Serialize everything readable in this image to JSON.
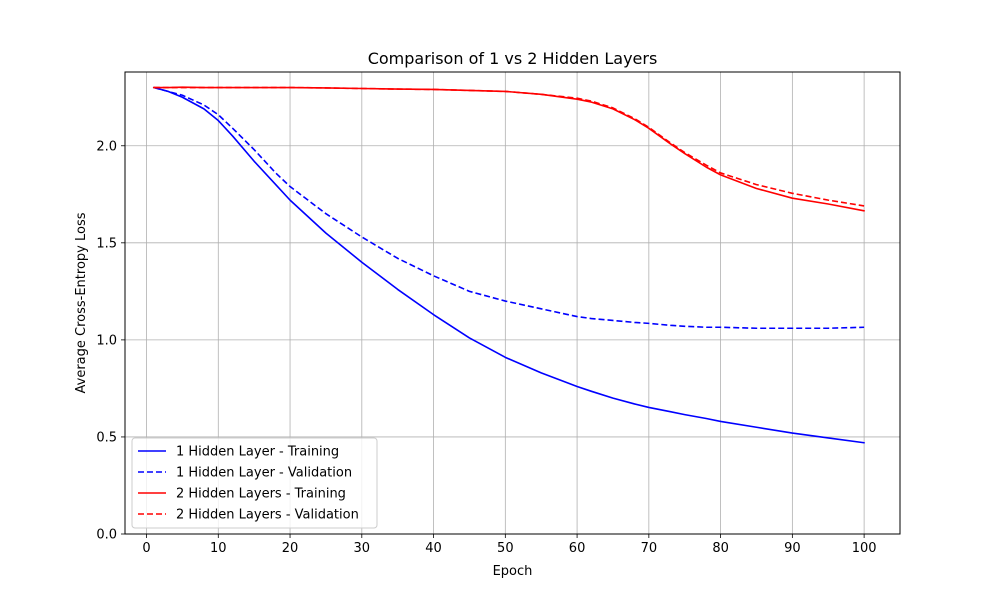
{
  "chart_data": {
    "type": "line",
    "title": "Comparison of 1 vs 2 Hidden Layers",
    "xlabel": "Epoch",
    "ylabel": "Average Cross-Entropy Loss",
    "xlim": [
      -3,
      105
    ],
    "ylim": [
      0.0,
      2.38
    ],
    "xticks": [
      0,
      10,
      20,
      30,
      40,
      50,
      60,
      70,
      80,
      90,
      100
    ],
    "yticks": [
      0.0,
      0.5,
      1.0,
      1.5,
      2.0
    ],
    "ytick_labels": [
      "0.0",
      "0.5",
      "1.0",
      "1.5",
      "2.0"
    ],
    "grid": true,
    "legend_position": "lower-left",
    "x": [
      1,
      3,
      5,
      8,
      10,
      12,
      15,
      18,
      20,
      25,
      30,
      35,
      40,
      45,
      50,
      55,
      60,
      62,
      65,
      68,
      70,
      73,
      75,
      78,
      80,
      85,
      90,
      95,
      100
    ],
    "series": [
      {
        "name": "1 Hidden Layer - Training",
        "color": "#0000ff",
        "linestyle": "solid",
        "values": [
          2.3,
          2.28,
          2.25,
          2.19,
          2.13,
          2.05,
          1.92,
          1.8,
          1.72,
          1.55,
          1.4,
          1.26,
          1.13,
          1.01,
          0.91,
          0.83,
          0.76,
          0.735,
          0.7,
          0.67,
          0.652,
          0.63,
          0.615,
          0.595,
          0.58,
          0.55,
          0.52,
          0.495,
          0.47
        ]
      },
      {
        "name": "1 Hidden Layer - Validation",
        "color": "#0000ff",
        "linestyle": "dashed",
        "values": [
          2.3,
          2.28,
          2.26,
          2.21,
          2.16,
          2.09,
          1.98,
          1.86,
          1.79,
          1.65,
          1.53,
          1.42,
          1.33,
          1.25,
          1.2,
          1.16,
          1.12,
          1.11,
          1.1,
          1.09,
          1.085,
          1.075,
          1.07,
          1.065,
          1.065,
          1.06,
          1.06,
          1.06,
          1.065
        ]
      },
      {
        "name": "2 Hidden Layers - Training",
        "color": "#ff0000",
        "linestyle": "solid",
        "values": [
          2.3,
          2.3,
          2.302,
          2.3,
          2.3,
          2.3,
          2.3,
          2.3,
          2.3,
          2.298,
          2.295,
          2.292,
          2.29,
          2.285,
          2.28,
          2.265,
          2.24,
          2.225,
          2.19,
          2.135,
          2.09,
          2.01,
          1.96,
          1.89,
          1.85,
          1.78,
          1.73,
          1.7,
          1.665
        ]
      },
      {
        "name": "2 Hidden Layers - Validation",
        "color": "#ff0000",
        "linestyle": "dashed",
        "values": [
          2.3,
          2.3,
          2.3,
          2.3,
          2.3,
          2.3,
          2.3,
          2.3,
          2.3,
          2.298,
          2.295,
          2.292,
          2.29,
          2.285,
          2.28,
          2.265,
          2.245,
          2.23,
          2.195,
          2.14,
          2.095,
          2.015,
          1.965,
          1.9,
          1.86,
          1.8,
          1.755,
          1.72,
          1.69
        ]
      }
    ]
  }
}
